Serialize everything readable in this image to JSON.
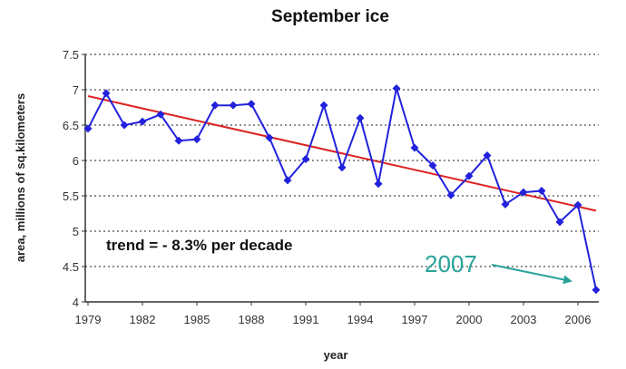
{
  "chart_data": {
    "type": "line",
    "title": "September ice",
    "xlabel": "year",
    "ylabel": "area, millions of sq.kilometers",
    "ylim": [
      4,
      7.5
    ],
    "xlim": [
      1979,
      2007
    ],
    "yticks": [
      "4",
      "4.5",
      "5",
      "5.5",
      "6",
      "6.5",
      "7",
      "7.5"
    ],
    "xticks": [
      "1979",
      "1982",
      "1985",
      "1988",
      "1991",
      "1994",
      "1997",
      "2000",
      "2003",
      "2006"
    ],
    "grid": "horizontal dotted",
    "series": [
      {
        "type": "line",
        "color": "#2222dd",
        "x": [
          1979,
          1980,
          1981,
          1982,
          1983,
          1984,
          1985,
          1986,
          1987,
          1988,
          1989,
          1990,
          1991,
          1992,
          1993,
          1994,
          1995,
          1996,
          1997,
          1998,
          1999,
          2000,
          2001,
          2002,
          2003,
          2004,
          2005,
          2006,
          2007
        ],
        "values": [
          6.45,
          6.95,
          6.5,
          6.55,
          6.65,
          6.28,
          6.3,
          6.78,
          6.78,
          6.8,
          6.32,
          5.72,
          6.02,
          6.78,
          5.9,
          6.6,
          5.67,
          7.02,
          6.18,
          5.93,
          5.51,
          5.78,
          6.07,
          5.38,
          5.55,
          5.57,
          5.13,
          5.37,
          4.17
        ]
      },
      {
        "type": "trend",
        "color": "#dd2222",
        "x": [
          1979,
          2007
        ],
        "values": [
          6.91,
          5.29
        ]
      }
    ],
    "annotations": [
      {
        "id": "trend",
        "text": "trend = - 8.3% per decade"
      },
      {
        "id": "year",
        "text": "2007",
        "arrow_color": "#2aa39a"
      }
    ]
  }
}
